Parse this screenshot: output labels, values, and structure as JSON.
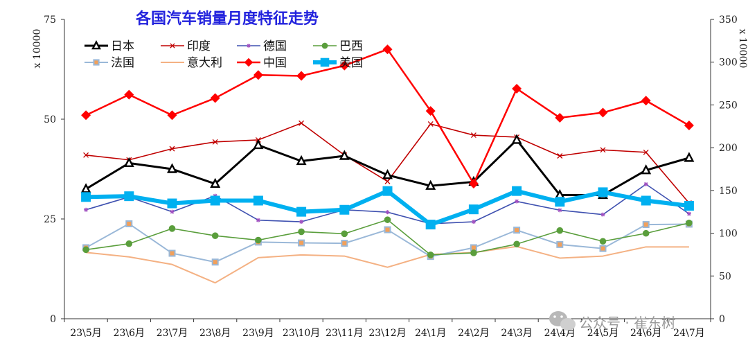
{
  "chart_data": {
    "type": "line",
    "title": "各国汽车销量月度特征走势",
    "ylabel_left": "x 10000",
    "ylabel_right": "x 10000",
    "ylim_left": [
      0,
      75
    ],
    "ylim_right": [
      0,
      350
    ],
    "yticks_left": [
      0,
      25,
      50,
      75
    ],
    "yticks_right": [
      0,
      50,
      100,
      150,
      200,
      250,
      300,
      350
    ],
    "categories": [
      "23\\5月",
      "23\\6月",
      "23\\7月",
      "23\\8月",
      "23\\9月",
      "23\\10月",
      "23\\11月",
      "23\\12月",
      "24\\1月",
      "24\\2月",
      "24\\3月",
      "24\\4月",
      "24\\5月",
      "24\\6月",
      "24\\7月"
    ],
    "legend_position": "top-left",
    "series": [
      {
        "name": "日本",
        "axis": "left",
        "color": "#000000",
        "marker": "triangle",
        "width": 3,
        "values": [
          32.5,
          39,
          37.5,
          33.8,
          43.5,
          39.5,
          40.8,
          36,
          33.3,
          34.3,
          44.8,
          31,
          31,
          37.2,
          40.3
        ]
      },
      {
        "name": "印度",
        "axis": "left",
        "color": "#c00000",
        "marker": "x",
        "width": 1.6,
        "values": [
          41,
          39.8,
          42.6,
          44.3,
          44.8,
          49,
          41,
          34.4,
          48.8,
          46,
          45.5,
          40.8,
          42.3,
          41.7,
          29
        ]
      },
      {
        "name": "德国",
        "axis": "left",
        "color": "#3f51b0",
        "marker": "star",
        "width": 1.6,
        "values": [
          27.3,
          30.5,
          26.8,
          30.8,
          24.7,
          24.3,
          27.3,
          26.7,
          23.8,
          24.3,
          29.4,
          27.2,
          26.1,
          33.7,
          26.3
        ]
      },
      {
        "name": "巴西",
        "axis": "left",
        "color": "#5a9e3c",
        "marker": "circle",
        "width": 1.6,
        "values": [
          17.3,
          18.8,
          22.6,
          20.8,
          19.7,
          21.8,
          21.3,
          24.8,
          16,
          16.5,
          18.7,
          22.1,
          19.4,
          21.4,
          24
        ]
      },
      {
        "name": "法国",
        "axis": "left",
        "color": "#9ab8d8",
        "marker": "square",
        "width": 2,
        "values": [
          17.8,
          23.8,
          16.4,
          14.2,
          19.2,
          19,
          18.9,
          22.3,
          15.6,
          17.8,
          22.2,
          18.6,
          17.6,
          23.6,
          23.7
        ]
      },
      {
        "name": "意大利",
        "axis": "left",
        "color": "#f4b183",
        "marker": "none",
        "width": 2,
        "values": [
          16.6,
          15.5,
          13.6,
          9,
          15.3,
          16,
          15.7,
          12.9,
          16.1,
          16.6,
          18.1,
          15.2,
          15.7,
          18,
          18
        ]
      },
      {
        "name": "中国",
        "axis": "right",
        "color": "#ff0000",
        "marker": "diamond",
        "width": 2.5,
        "values": [
          238,
          262,
          238,
          258,
          285,
          284,
          296,
          315,
          243,
          158,
          269,
          235,
          241,
          255,
          226
        ]
      },
      {
        "name": "美国",
        "axis": "left",
        "color": "#00b0f0",
        "marker": "square",
        "width": 6,
        "values": [
          30.5,
          30.7,
          28.9,
          29.6,
          29.6,
          26.8,
          27.3,
          32,
          23.6,
          27.4,
          32,
          29.3,
          31.7,
          29.6,
          28.3
        ]
      }
    ]
  },
  "watermark": {
    "text": "公众号 · 崔东树",
    "icon": "wechat-icon"
  }
}
